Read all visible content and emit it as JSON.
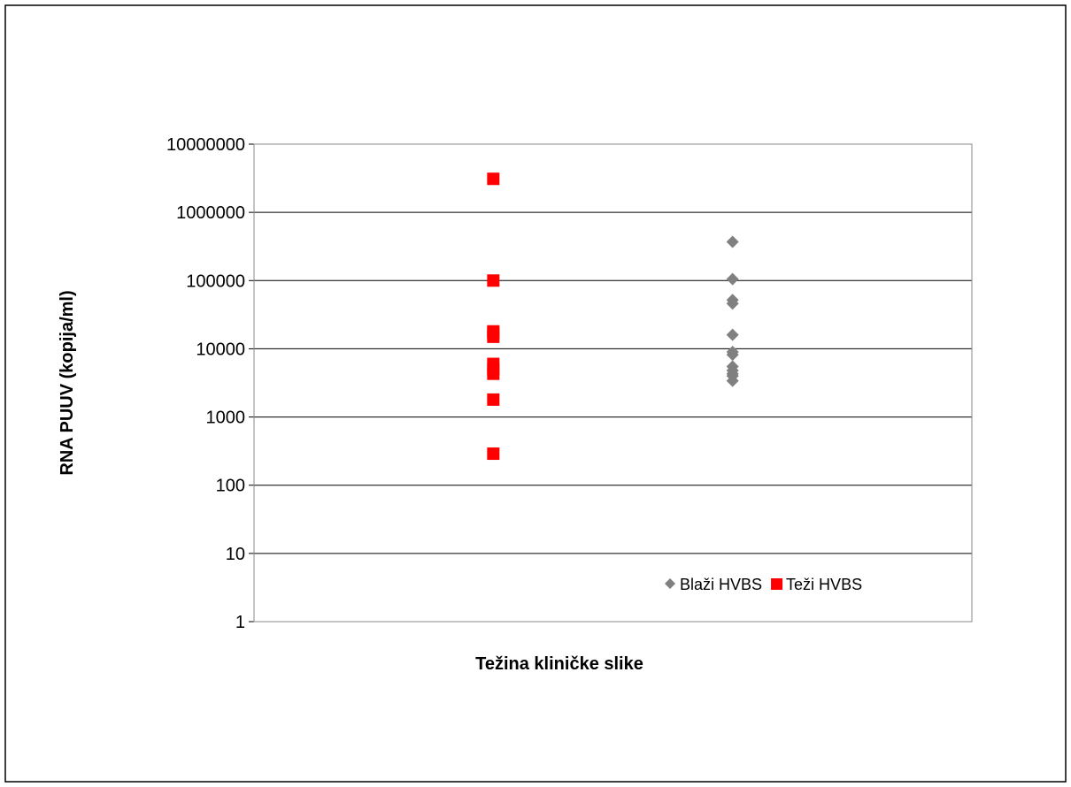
{
  "chart_data": {
    "type": "scatter",
    "title": "",
    "xlabel": "Težina kliničke slike",
    "ylabel": "RNA PUUV (kopija/ml)",
    "yscale": "log",
    "ylim": [
      1,
      10000000
    ],
    "yticks": [
      {
        "value": 1,
        "label": "1"
      },
      {
        "value": 10,
        "label": "10"
      },
      {
        "value": 100,
        "label": "100"
      },
      {
        "value": 1000,
        "label": "1000"
      },
      {
        "value": 10000,
        "label": "10000"
      },
      {
        "value": 100000,
        "label": "100000"
      },
      {
        "value": 1000000,
        "label": "1000000"
      },
      {
        "value": 10000000,
        "label": "10000000"
      }
    ],
    "xlim": [
      0,
      3
    ],
    "grid": true,
    "legend_position": "bottom-right",
    "series": [
      {
        "name": "Blaži HVBS",
        "marker": "diamond",
        "color": "#808080",
        "x": [
          2,
          2,
          2,
          2,
          2,
          2,
          2,
          2,
          2,
          2,
          2,
          2
        ],
        "y": [
          370000,
          105000,
          52000,
          46000,
          16000,
          9000,
          8200,
          5500,
          4800,
          4300,
          4000,
          3400
        ]
      },
      {
        "name": "Teži HVBS",
        "marker": "square",
        "color": "#ff0000",
        "x": [
          1,
          1,
          1,
          1,
          1,
          1,
          1,
          1,
          1,
          1
        ],
        "y": [
          3100000,
          100000,
          18000,
          17000,
          15000,
          6000,
          5000,
          4300,
          1800,
          290
        ]
      }
    ]
  }
}
